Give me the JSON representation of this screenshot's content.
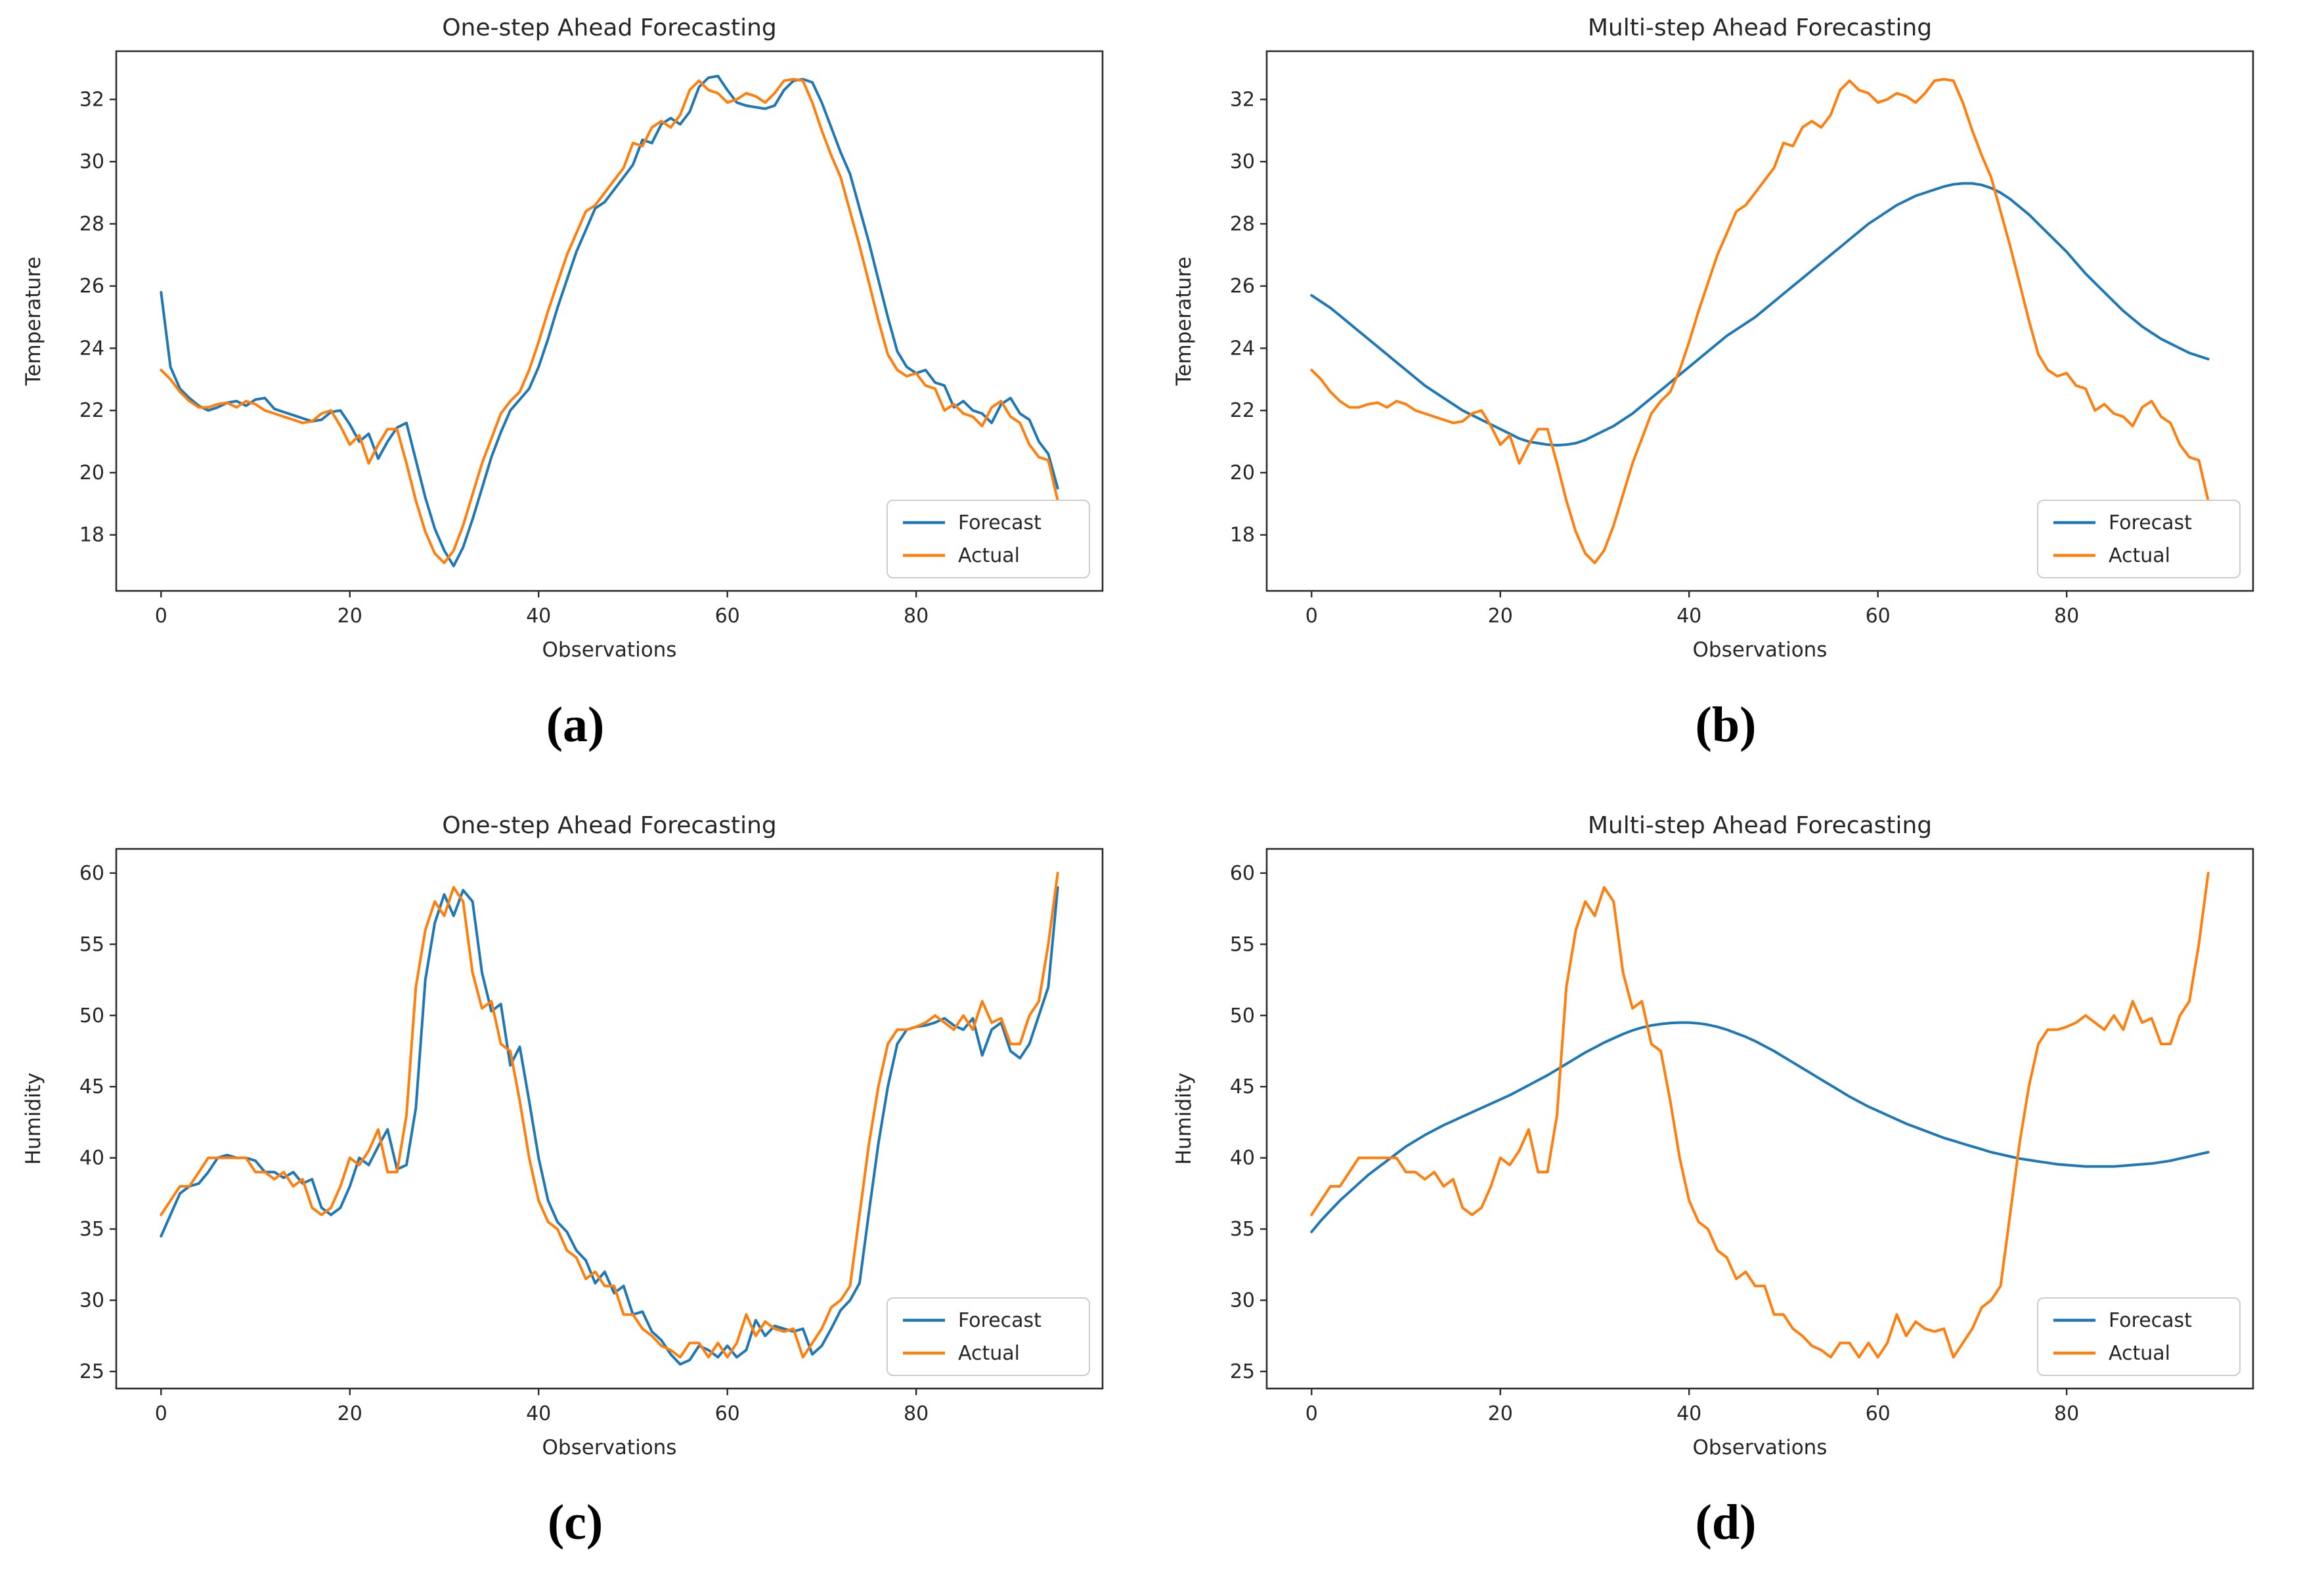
{
  "figure": {
    "background": "#ffffff",
    "captions": [
      "(a)",
      "(b)",
      "(c)",
      "(d)"
    ]
  },
  "colors": {
    "forecast": "#1f77b4",
    "actual": "#ff7f0e",
    "spine": "#2b2b2b",
    "text": "#262626",
    "legend_border": "#cccccc",
    "legend_bg": "#ffffff"
  },
  "chart_data": [
    {
      "type": "line",
      "caption": "(a)",
      "title": "One-step Ahead Forecasting",
      "xlabel": "Observations",
      "ylabel": "Temperature",
      "xticks": [
        0,
        20,
        40,
        60,
        80
      ],
      "yticks": [
        18,
        20,
        22,
        24,
        26,
        28,
        30,
        32
      ],
      "xlim": [
        -4.75,
        99.75
      ],
      "ylim": [
        16.2,
        33.55
      ],
      "grid": false,
      "legend_position": "lower right",
      "series": [
        {
          "name": "Forecast",
          "color": "#1f77b4",
          "values": [
            25.8,
            23.4,
            22.7,
            22.4,
            22.15,
            22.0,
            22.1,
            22.25,
            22.3,
            22.15,
            22.35,
            22.4,
            22.05,
            21.95,
            21.85,
            21.75,
            21.65,
            21.7,
            21.95,
            22.0,
            21.55,
            21.0,
            21.25,
            20.45,
            21.0,
            21.45,
            21.6,
            20.4,
            19.2,
            18.2,
            17.5,
            17.0,
            17.6,
            18.5,
            19.5,
            20.5,
            21.3,
            22.0,
            22.35,
            22.7,
            23.4,
            24.3,
            25.3,
            26.2,
            27.1,
            27.8,
            28.5,
            28.7,
            29.1,
            29.5,
            29.9,
            30.7,
            30.6,
            31.2,
            31.4,
            31.2,
            31.6,
            32.4,
            32.7,
            32.75,
            32.3,
            31.9,
            31.8,
            31.75,
            31.7,
            31.8,
            32.3,
            32.6,
            32.65,
            32.55,
            31.9,
            31.1,
            30.3,
            29.6,
            28.5,
            27.4,
            26.2,
            25.0,
            23.9,
            23.4,
            23.2,
            23.3,
            22.9,
            22.8,
            22.1,
            22.3,
            22.0,
            21.9,
            21.6,
            22.2,
            22.4,
            21.9,
            21.7,
            21.0,
            20.6,
            19.5
          ]
        },
        {
          "name": "Actual",
          "color": "#ff7f0e",
          "values": [
            23.3,
            23.0,
            22.6,
            22.3,
            22.1,
            22.1,
            22.2,
            22.25,
            22.1,
            22.3,
            22.2,
            22.0,
            21.9,
            21.8,
            21.7,
            21.6,
            21.65,
            21.9,
            22.0,
            21.5,
            20.9,
            21.2,
            20.3,
            20.9,
            21.4,
            21.4,
            20.3,
            19.1,
            18.1,
            17.4,
            17.1,
            17.5,
            18.3,
            19.3,
            20.3,
            21.1,
            21.9,
            22.3,
            22.6,
            23.3,
            24.2,
            25.2,
            26.1,
            27.0,
            27.7,
            28.4,
            28.6,
            29.0,
            29.4,
            29.8,
            30.6,
            30.5,
            31.1,
            31.3,
            31.1,
            31.5,
            32.3,
            32.6,
            32.3,
            32.2,
            31.9,
            32.0,
            32.2,
            32.1,
            31.9,
            32.2,
            32.6,
            32.65,
            32.6,
            31.9,
            31.0,
            30.2,
            29.5,
            28.4,
            27.3,
            26.1,
            24.9,
            23.8,
            23.3,
            23.1,
            23.2,
            22.8,
            22.7,
            22.0,
            22.2,
            21.9,
            21.8,
            21.5,
            22.1,
            22.3,
            21.8,
            21.6,
            20.9,
            20.5,
            20.4,
            19.1
          ]
        }
      ]
    },
    {
      "type": "line",
      "caption": "(b)",
      "title": "Multi-step Ahead Forecasting",
      "xlabel": "Observations",
      "ylabel": "Temperature",
      "xticks": [
        0,
        20,
        40,
        60,
        80
      ],
      "yticks": [
        18,
        20,
        22,
        24,
        26,
        28,
        30,
        32
      ],
      "xlim": [
        -4.75,
        99.75
      ],
      "ylim": [
        16.2,
        33.55
      ],
      "grid": false,
      "legend_position": "lower right",
      "series": [
        {
          "name": "Forecast",
          "color": "#1f77b4",
          "values": [
            25.7,
            25.5,
            25.3,
            25.05,
            24.8,
            24.55,
            24.3,
            24.05,
            23.8,
            23.55,
            23.3,
            23.05,
            22.8,
            22.6,
            22.4,
            22.2,
            22.0,
            21.85,
            21.7,
            21.55,
            21.4,
            21.25,
            21.1,
            21.0,
            20.95,
            20.9,
            20.88,
            20.9,
            20.95,
            21.05,
            21.2,
            21.35,
            21.5,
            21.7,
            21.9,
            22.15,
            22.4,
            22.65,
            22.9,
            23.15,
            23.4,
            23.65,
            23.9,
            24.15,
            24.4,
            24.6,
            24.8,
            25.0,
            25.25,
            25.5,
            25.75,
            26.0,
            26.25,
            26.5,
            26.75,
            27.0,
            27.25,
            27.5,
            27.75,
            28.0,
            28.2,
            28.4,
            28.6,
            28.75,
            28.9,
            29.0,
            29.1,
            29.2,
            29.27,
            29.3,
            29.3,
            29.25,
            29.15,
            29.0,
            28.8,
            28.55,
            28.3,
            28.0,
            27.7,
            27.4,
            27.1,
            26.75,
            26.4,
            26.1,
            25.8,
            25.5,
            25.2,
            24.95,
            24.7,
            24.5,
            24.3,
            24.15,
            24.0,
            23.85,
            23.75,
            23.65
          ]
        },
        {
          "name": "Actual",
          "color": "#ff7f0e",
          "values": [
            23.3,
            23.0,
            22.6,
            22.3,
            22.1,
            22.1,
            22.2,
            22.25,
            22.1,
            22.3,
            22.2,
            22.0,
            21.9,
            21.8,
            21.7,
            21.6,
            21.65,
            21.9,
            22.0,
            21.5,
            20.9,
            21.2,
            20.3,
            20.9,
            21.4,
            21.4,
            20.3,
            19.1,
            18.1,
            17.4,
            17.1,
            17.5,
            18.3,
            19.3,
            20.3,
            21.1,
            21.9,
            22.3,
            22.6,
            23.3,
            24.2,
            25.2,
            26.1,
            27.0,
            27.7,
            28.4,
            28.6,
            29.0,
            29.4,
            29.8,
            30.6,
            30.5,
            31.1,
            31.3,
            31.1,
            31.5,
            32.3,
            32.6,
            32.3,
            32.2,
            31.9,
            32.0,
            32.2,
            32.1,
            31.9,
            32.2,
            32.6,
            32.65,
            32.6,
            31.9,
            31.0,
            30.2,
            29.5,
            28.4,
            27.3,
            26.1,
            24.9,
            23.8,
            23.3,
            23.1,
            23.2,
            22.8,
            22.7,
            22.0,
            22.2,
            21.9,
            21.8,
            21.5,
            22.1,
            22.3,
            21.8,
            21.6,
            20.9,
            20.5,
            20.4,
            19.1
          ]
        }
      ]
    },
    {
      "type": "line",
      "caption": "(c)",
      "title": "One-step Ahead Forecasting",
      "xlabel": "Observations",
      "ylabel": "Humidity",
      "xticks": [
        0,
        20,
        40,
        60,
        80
      ],
      "yticks": [
        25,
        30,
        35,
        40,
        45,
        50,
        55,
        60
      ],
      "xlim": [
        -4.75,
        99.75
      ],
      "ylim": [
        23.8,
        61.7
      ],
      "grid": false,
      "legend_position": "lower right",
      "series": [
        {
          "name": "Forecast",
          "color": "#1f77b4",
          "values": [
            34.5,
            36.0,
            37.5,
            38.0,
            38.2,
            39.0,
            40.0,
            40.2,
            40.0,
            40.0,
            39.8,
            39.0,
            39.0,
            38.6,
            39.0,
            38.2,
            38.5,
            36.5,
            36.0,
            36.5,
            38.0,
            40.0,
            39.5,
            40.8,
            42.0,
            39.2,
            39.5,
            43.5,
            52.5,
            56.5,
            58.5,
            57.0,
            58.8,
            58.0,
            53.0,
            50.3,
            50.8,
            46.5,
            47.8,
            44.0,
            40.0,
            37.0,
            35.5,
            34.8,
            33.5,
            32.8,
            31.2,
            32.0,
            30.5,
            31.0,
            29.0,
            29.2,
            27.8,
            27.2,
            26.2,
            25.5,
            25.8,
            26.8,
            26.5,
            26.0,
            26.8,
            26.0,
            26.5,
            28.6,
            27.5,
            28.2,
            28.0,
            27.8,
            28.0,
            26.2,
            26.8,
            28.0,
            29.3,
            30.0,
            31.2,
            36.2,
            41.0,
            45.0,
            48.0,
            49.0,
            49.2,
            49.3,
            49.5,
            49.8,
            49.3,
            49.0,
            49.8,
            47.2,
            49.0,
            49.5,
            47.5,
            47.0,
            48.0,
            50.0,
            52.0,
            59.0
          ]
        },
        {
          "name": "Actual",
          "color": "#ff7f0e",
          "values": [
            36.0,
            37.0,
            38.0,
            38.0,
            39.0,
            40.0,
            40.0,
            40.0,
            40.0,
            40.0,
            39.0,
            39.0,
            38.5,
            39.0,
            38.0,
            38.5,
            36.5,
            36.0,
            36.5,
            38.0,
            40.0,
            39.5,
            40.5,
            42.0,
            39.0,
            39.0,
            43.0,
            52.0,
            56.0,
            58.0,
            57.0,
            59.0,
            58.0,
            53.0,
            50.5,
            51.0,
            48.0,
            47.5,
            44.0,
            40.0,
            37.0,
            35.5,
            35.0,
            33.5,
            33.0,
            31.5,
            32.0,
            31.0,
            31.0,
            29.0,
            29.0,
            28.0,
            27.5,
            26.8,
            26.5,
            26.0,
            27.0,
            27.0,
            26.0,
            27.0,
            26.0,
            27.0,
            29.0,
            27.5,
            28.5,
            28.0,
            27.8,
            28.0,
            26.0,
            27.0,
            28.0,
            29.5,
            30.0,
            31.0,
            36.0,
            41.0,
            45.0,
            48.0,
            49.0,
            49.0,
            49.2,
            49.5,
            50.0,
            49.5,
            49.0,
            50.0,
            49.0,
            51.0,
            49.5,
            49.8,
            48.0,
            48.0,
            50.0,
            51.0,
            55.0,
            60.0
          ]
        }
      ]
    },
    {
      "type": "line",
      "caption": "(d)",
      "title": "Multi-step Ahead Forecasting",
      "xlabel": "Observations",
      "ylabel": "Humidity",
      "xticks": [
        0,
        20,
        40,
        60,
        80
      ],
      "yticks": [
        25,
        30,
        35,
        40,
        45,
        50,
        55,
        60
      ],
      "xlim": [
        -4.75,
        99.75
      ],
      "ylim": [
        23.8,
        61.7
      ],
      "grid": false,
      "legend_position": "lower right",
      "series": [
        {
          "name": "Forecast",
          "color": "#1f77b4",
          "values": [
            34.8,
            35.6,
            36.3,
            37.0,
            37.6,
            38.2,
            38.8,
            39.3,
            39.8,
            40.3,
            40.8,
            41.2,
            41.6,
            41.95,
            42.3,
            42.6,
            42.9,
            43.2,
            43.5,
            43.8,
            44.1,
            44.4,
            44.75,
            45.1,
            45.45,
            45.8,
            46.2,
            46.6,
            47.0,
            47.4,
            47.75,
            48.1,
            48.4,
            48.7,
            48.95,
            49.15,
            49.3,
            49.4,
            49.47,
            49.5,
            49.5,
            49.45,
            49.35,
            49.2,
            49.0,
            48.75,
            48.5,
            48.2,
            47.85,
            47.5,
            47.1,
            46.7,
            46.3,
            45.9,
            45.5,
            45.1,
            44.7,
            44.3,
            43.95,
            43.6,
            43.3,
            43.0,
            42.7,
            42.4,
            42.15,
            41.9,
            41.65,
            41.4,
            41.2,
            41.0,
            40.8,
            40.6,
            40.4,
            40.25,
            40.1,
            39.95,
            39.85,
            39.75,
            39.65,
            39.55,
            39.5,
            39.45,
            39.4,
            39.4,
            39.4,
            39.4,
            39.45,
            39.5,
            39.55,
            39.6,
            39.7,
            39.8,
            39.95,
            40.1,
            40.25,
            40.4
          ]
        },
        {
          "name": "Actual",
          "color": "#ff7f0e",
          "values": [
            36.0,
            37.0,
            38.0,
            38.0,
            39.0,
            40.0,
            40.0,
            40.0,
            40.0,
            40.0,
            39.0,
            39.0,
            38.5,
            39.0,
            38.0,
            38.5,
            36.5,
            36.0,
            36.5,
            38.0,
            40.0,
            39.5,
            40.5,
            42.0,
            39.0,
            39.0,
            43.0,
            52.0,
            56.0,
            58.0,
            57.0,
            59.0,
            58.0,
            53.0,
            50.5,
            51.0,
            48.0,
            47.5,
            44.0,
            40.0,
            37.0,
            35.5,
            35.0,
            33.5,
            33.0,
            31.5,
            32.0,
            31.0,
            31.0,
            29.0,
            29.0,
            28.0,
            27.5,
            26.8,
            26.5,
            26.0,
            27.0,
            27.0,
            26.0,
            27.0,
            26.0,
            27.0,
            29.0,
            27.5,
            28.5,
            28.0,
            27.8,
            28.0,
            26.0,
            27.0,
            28.0,
            29.5,
            30.0,
            31.0,
            36.0,
            41.0,
            45.0,
            48.0,
            49.0,
            49.0,
            49.2,
            49.5,
            50.0,
            49.5,
            49.0,
            50.0,
            49.0,
            51.0,
            49.5,
            49.8,
            48.0,
            48.0,
            50.0,
            51.0,
            55.0,
            60.0
          ]
        }
      ]
    }
  ]
}
